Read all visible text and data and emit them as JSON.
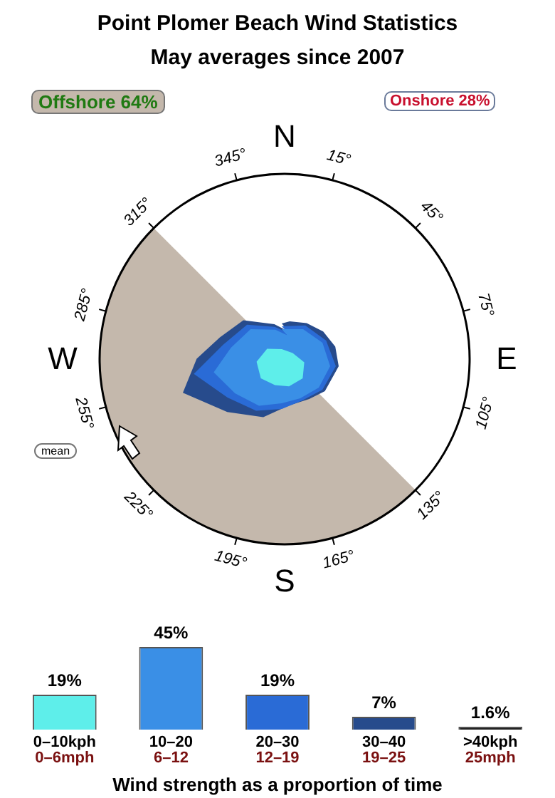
{
  "chart_data": [
    {
      "type": "other",
      "title": "Point Plomer Beach Wind Statistics",
      "subtitle": "May averages since 2007",
      "annotations": [
        "Offshore 64%",
        "Onshore 28%",
        "mean",
        "N",
        "E",
        "S",
        "W",
        "15°",
        "45°",
        "75°",
        "105°",
        "135°",
        "165°",
        "195°",
        "225°",
        "255°",
        "285°",
        "315°",
        "345°"
      ]
    },
    {
      "type": "bar",
      "categories": [
        "0–10kph\n0–6mph",
        "10–20\n6–12",
        "20–30\n12–19",
        "30–40\n19–25",
        ">40kph\n25mph"
      ],
      "values": [
        19,
        45,
        19,
        7,
        1.6
      ],
      "value_labels": [
        "19%",
        "45%",
        "19%",
        "7%",
        "1.6%"
      ],
      "colors": [
        "#5eeeea",
        "#3a8fe6",
        "#2a6bd6",
        "#274b8c",
        "#222222"
      ],
      "xlabel": "Wind strength as a proportion of time"
    }
  ]
}
